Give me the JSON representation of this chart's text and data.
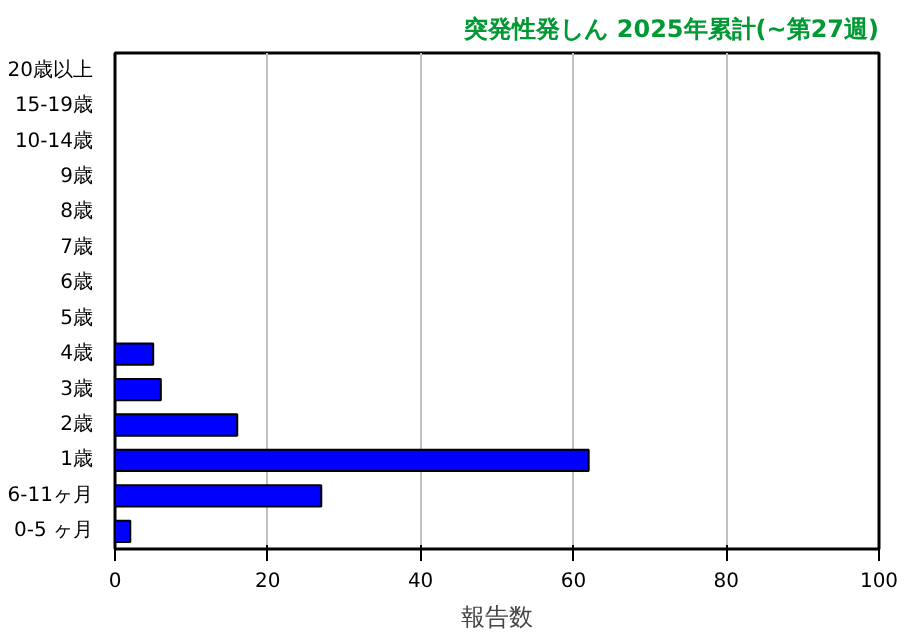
{
  "chart_data": {
    "type": "bar",
    "orientation": "horizontal",
    "title": "突発性発しん 2025年累計(~第27週)",
    "xlabel": "報告数",
    "categories": [
      "20歳以上",
      "15-19歳",
      "10-14歳",
      "9歳",
      "8歳",
      "7歳",
      "6歳",
      "5歳",
      "4歳",
      "3歳",
      "2歳",
      "1歳",
      "6-11ヶ月",
      "0-5 ヶ月"
    ],
    "values": [
      0,
      0,
      0,
      0,
      0,
      0,
      0,
      0,
      5,
      6,
      16,
      62,
      27,
      2
    ],
    "color": "#0000ff",
    "xlim": [
      0,
      100
    ],
    "xticks": [
      0,
      20,
      40,
      60,
      80,
      100
    ],
    "grid": "x"
  }
}
